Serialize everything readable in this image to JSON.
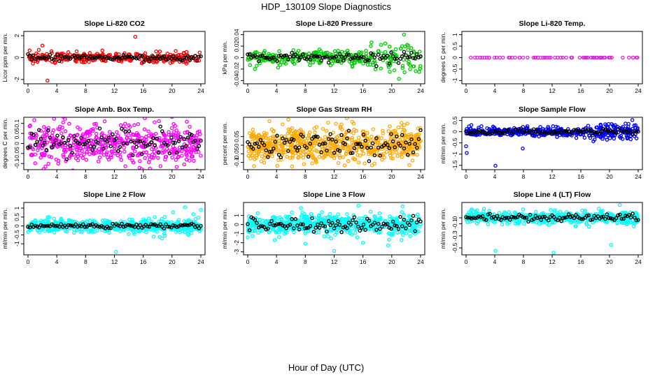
{
  "figure": {
    "title": "HDP_130109  Slope Diagnostics",
    "xlabel": "Hour of Day (UTC)"
  },
  "colors": {
    "overlay": "#000000",
    "axis": "#000000"
  },
  "chart_data": [
    {
      "type": "scatter",
      "title": "Slope Li-820 CO2",
      "ylabel": "Licor ppm per min.",
      "color": "#ff0000",
      "xlim": [
        0,
        24
      ],
      "ylim": [
        -2.2,
        2.2
      ],
      "yticks": [
        -2,
        0,
        2
      ],
      "xticks": [
        0,
        4,
        8,
        12,
        16,
        20,
        24
      ],
      "spread": 0.22,
      "overlay_spread": 0.12,
      "n": 300,
      "density_boost": [],
      "outliers": [
        [
          2.0,
          1.1
        ],
        [
          2.7,
          -2.1
        ],
        [
          14.9,
          1.9
        ],
        [
          1.5,
          0.7
        ],
        [
          20.5,
          0.6
        ],
        [
          5.6,
          0.5
        ]
      ]
    },
    {
      "type": "scatter",
      "title": "Slope Li-820 Pressure",
      "ylabel": "kPa per min.",
      "color": "#00cc00",
      "xlim": [
        0,
        24
      ],
      "ylim": [
        -0.042,
        0.042
      ],
      "yticks": [
        -0.04,
        -0.02,
        0.0,
        0.02,
        0.04
      ],
      "xticks": [
        0,
        4,
        8,
        12,
        16,
        20,
        24
      ],
      "spread": 0.006,
      "overlay_spread": 0.004,
      "n": 300,
      "density_boost": [
        [
          17,
          24,
          0.014
        ]
      ],
      "outliers": [
        [
          21.7,
          0.04
        ],
        [
          21.0,
          -0.037
        ],
        [
          23.8,
          -0.025
        ],
        [
          1.0,
          -0.02
        ]
      ]
    },
    {
      "type": "scatter",
      "title": "Slope Li-820 Temp.",
      "ylabel": "degrees C per min.",
      "color": "#cc33cc",
      "xlim": [
        0,
        24
      ],
      "ylim": [
        -1.05,
        1.05
      ],
      "yticks": [
        -1.0,
        -0.5,
        0.0,
        0.5,
        1.0
      ],
      "xticks": [
        0,
        4,
        8,
        12,
        16,
        20,
        24
      ],
      "spread": 0.0,
      "overlay_spread": 0.0,
      "n": 70,
      "density_boost": [],
      "outliers": []
    },
    {
      "type": "scatter",
      "title": "Slope Amb. Box Temp.",
      "ylabel": "degrees C per min.",
      "color": "#ff00ff",
      "xlim": [
        0,
        24
      ],
      "ylim": [
        -0.12,
        0.12
      ],
      "yticks": [
        -0.1,
        -0.05,
        0.0,
        0.05,
        0.1
      ],
      "xticks": [
        0,
        4,
        8,
        12,
        16,
        20,
        24
      ],
      "spread": 0.05,
      "overlay_spread": 0.03,
      "n": 520,
      "density_boost": [],
      "outliers": [
        [
          4.2,
          -0.1
        ],
        [
          22.0,
          -0.08
        ]
      ]
    },
    {
      "type": "scatter",
      "title": "Slope Gas Stream RH",
      "ylabel": "percent per min.",
      "color": "#ffaa00",
      "xlim": [
        0,
        24
      ],
      "ylim": [
        -0.13,
        0.15
      ],
      "yticks": [
        -0.1,
        -0.05,
        0.0,
        0.05
      ],
      "xticks": [
        0,
        4,
        8,
        12,
        16,
        20,
        24
      ],
      "spread": 0.05,
      "overlay_spread": 0.035,
      "n": 700,
      "density_boost": [],
      "outliers": [
        [
          3.0,
          0.14
        ],
        [
          4.1,
          -0.12
        ],
        [
          7.8,
          -0.11
        ]
      ]
    },
    {
      "type": "scatter",
      "title": "Slope Sample Flow",
      "ylabel": "ml/min per min.",
      "color": "#0000ff",
      "xlim": [
        0,
        24
      ],
      "ylim": [
        -1.6,
        0.55
      ],
      "yticks": [
        -1.5,
        -1.0,
        -0.5,
        0.0,
        0.5
      ],
      "xticks": [
        0,
        4,
        8,
        12,
        16,
        20,
        24
      ],
      "spread": 0.1,
      "overlay_spread": 0.06,
      "n": 420,
      "density_boost": [
        [
          17,
          24,
          0.2
        ]
      ],
      "outliers": [
        [
          4.1,
          -1.52
        ],
        [
          0.0,
          -0.65
        ],
        [
          0.1,
          -0.95
        ],
        [
          7.9,
          -0.75
        ]
      ]
    },
    {
      "type": "scatter",
      "title": "Slope Line 2 Flow",
      "ylabel": "ml/min per min.",
      "color": "#00ffff",
      "xlim": [
        0,
        24
      ],
      "ylim": [
        -1.5,
        1.2
      ],
      "yticks": [
        -1.0,
        -0.5,
        0.0,
        0.5,
        1.0
      ],
      "xticks": [
        0,
        4,
        8,
        12,
        16,
        20,
        24
      ],
      "spread": 0.17,
      "overlay_spread": 0.07,
      "n": 520,
      "density_boost": [
        [
          17,
          24,
          0.2
        ]
      ],
      "outliers": [
        [
          12.2,
          -1.45
        ],
        [
          21.8,
          1.05
        ],
        [
          19.0,
          -0.55
        ],
        [
          18.6,
          -0.7
        ],
        [
          24.0,
          0.9
        ]
      ]
    },
    {
      "type": "scatter",
      "title": "Slope Line 3 Flow",
      "ylabel": "ml/min per min.",
      "color": "#00ffff",
      "xlim": [
        0,
        24
      ],
      "ylim": [
        -3.1,
        2.2
      ],
      "yticks": [
        -3,
        -2,
        -1,
        0,
        1
      ],
      "xticks": [
        0,
        4,
        8,
        12,
        16,
        20,
        24
      ],
      "spread": 0.55,
      "overlay_spread": 0.35,
      "n": 600,
      "density_boost": [],
      "outliers": [
        [
          12.0,
          -2.9
        ],
        [
          21.5,
          2.0
        ],
        [
          16.0,
          -2.0
        ],
        [
          19.5,
          -2.3
        ],
        [
          0.0,
          -1.4
        ],
        [
          8.0,
          -2.1
        ]
      ]
    },
    {
      "type": "scatter",
      "title": "Slope Line 4 (LT) Flow",
      "ylabel": "ml/min per min.",
      "color": "#00ffff",
      "xlim": [
        0,
        24
      ],
      "ylim": [
        -0.58,
        0.22
      ],
      "yticks": [
        -0.5,
        -0.3,
        -0.1,
        0.0
      ],
      "xticks": [
        0,
        4,
        8,
        12,
        16,
        20,
        24
      ],
      "spread": 0.05,
      "overlay_spread": 0.03,
      "n": 520,
      "density_boost": [],
      "outliers": [
        [
          4.1,
          -0.55
        ],
        [
          12.2,
          -0.58
        ],
        [
          20.2,
          -0.45
        ],
        [
          2.5,
          0.15
        ],
        [
          18.5,
          0.15
        ]
      ]
    }
  ]
}
